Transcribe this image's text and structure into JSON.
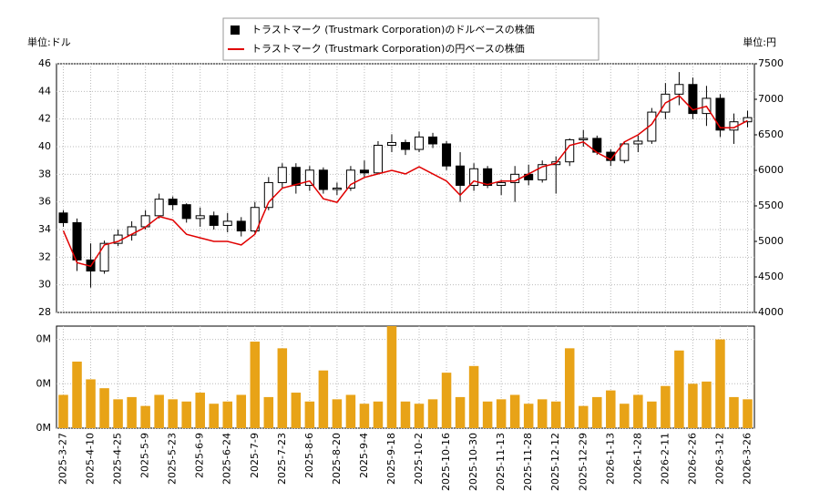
{
  "chart_data": [
    {
      "type": "candlestick",
      "y_unit_label": "単位:ドル",
      "y2_unit_label": "単位:円",
      "series": [
        {
          "name": "トラストマーク (Trustmark Corporation)のドルベースの株価",
          "color": "#000000",
          "open": [
            35.2,
            34.5,
            31.8,
            31.0,
            33.0,
            33.6,
            34.2,
            35.0,
            36.2,
            35.8,
            34.8,
            35.0,
            34.3,
            34.6,
            33.9,
            35.6,
            37.4,
            38.5,
            37.2,
            38.3,
            36.9,
            37.0,
            38.3,
            38.1,
            40.1,
            40.3,
            39.8,
            40.7,
            40.2,
            38.6,
            37.2,
            38.4,
            37.2,
            37.4,
            38.0,
            37.6,
            38.7,
            38.9,
            40.5,
            40.6,
            39.6,
            39.0,
            40.2,
            40.4,
            42.5,
            43.8,
            44.5,
            42.4,
            43.5,
            41.2,
            41.8
          ],
          "high": [
            35.4,
            34.8,
            33.0,
            33.2,
            34.0,
            34.6,
            35.4,
            36.6,
            36.4,
            35.9,
            35.6,
            35.3,
            35.2,
            34.9,
            36.0,
            37.8,
            38.8,
            38.8,
            38.6,
            38.5,
            37.4,
            38.6,
            39.0,
            40.4,
            40.9,
            40.5,
            41.1,
            41.0,
            40.4,
            39.6,
            38.8,
            38.6,
            37.6,
            38.6,
            38.7,
            39.0,
            39.3,
            40.6,
            41.2,
            40.8,
            39.8,
            40.4,
            40.8,
            42.8,
            44.6,
            45.4,
            45.0,
            44.4,
            43.8,
            42.4,
            42.6
          ],
          "low": [
            34.2,
            31.0,
            29.8,
            30.8,
            32.8,
            33.2,
            34.0,
            34.8,
            35.4,
            34.5,
            34.2,
            34.0,
            33.8,
            33.5,
            33.7,
            35.4,
            37.0,
            36.6,
            36.8,
            36.6,
            36.5,
            36.8,
            37.8,
            38.0,
            39.6,
            39.4,
            39.6,
            39.9,
            38.3,
            36.0,
            36.8,
            37.0,
            36.5,
            36.0,
            37.2,
            37.4,
            36.6,
            38.6,
            40.0,
            39.4,
            38.6,
            38.8,
            39.6,
            40.2,
            42.0,
            43.0,
            42.0,
            41.5,
            40.7,
            40.2,
            41.4
          ],
          "close": [
            34.5,
            31.8,
            31.0,
            33.0,
            33.6,
            34.2,
            35.0,
            36.2,
            35.8,
            34.8,
            35.0,
            34.3,
            34.6,
            33.9,
            35.6,
            37.4,
            38.5,
            37.2,
            38.3,
            36.9,
            37.0,
            38.3,
            38.1,
            40.1,
            40.3,
            39.8,
            40.7,
            40.2,
            38.6,
            37.2,
            38.4,
            37.2,
            37.4,
            38.0,
            37.6,
            38.7,
            38.9,
            40.5,
            40.6,
            39.6,
            39.0,
            40.2,
            40.4,
            42.5,
            43.8,
            44.5,
            42.4,
            43.5,
            41.2,
            41.8,
            42.1
          ]
        },
        {
          "name": "トラストマーク (Trustmark Corporation)の円ベースの株価",
          "color": "#e00000",
          "axis": "y2",
          "values": [
            5150,
            4700,
            4650,
            4950,
            5000,
            5100,
            5200,
            5350,
            5300,
            5100,
            5050,
            5000,
            5000,
            4950,
            5100,
            5550,
            5750,
            5800,
            5850,
            5600,
            5550,
            5800,
            5900,
            5950,
            6000,
            5950,
            6050,
            5950,
            5850,
            5650,
            5850,
            5800,
            5850,
            5850,
            5950,
            6050,
            6100,
            6350,
            6400,
            6250,
            6150,
            6400,
            6500,
            6650,
            6950,
            7050,
            6850,
            6900,
            6600,
            6600,
            6700
          ]
        }
      ],
      "ylim": [
        28,
        46
      ],
      "yticks": [
        28,
        30,
        32,
        34,
        36,
        38,
        40,
        42,
        44,
        46
      ],
      "y2lim": [
        4000,
        7500
      ],
      "y2ticks": [
        4000,
        4500,
        5000,
        5500,
        6000,
        6500,
        7000,
        7500
      ],
      "grid": true
    },
    {
      "type": "bar",
      "color": "#e8a317",
      "categories": [
        "2025-3-27",
        null,
        "2025-4-10",
        null,
        "2025-4-25",
        null,
        "2025-5-9",
        null,
        "2025-5-23",
        null,
        "2025-6-9",
        null,
        "2025-6-24",
        null,
        "2025-7-9",
        null,
        "2025-7-23",
        null,
        "2025-8-6",
        null,
        "2025-8-20",
        null,
        "2025-9-4",
        null,
        "2025-9-18",
        null,
        "2025-10-2",
        null,
        "2025-10-16",
        null,
        "2025-10-30",
        null,
        "2025-11-13",
        null,
        "2025-11-28",
        null,
        "2025-12-12",
        null,
        "2025-12-29",
        null,
        "2026-1-13",
        null,
        "2026-1-28",
        null,
        "2026-2-11",
        null,
        "2026-2-26",
        null,
        "2026-3-12",
        null,
        "2026-3-26"
      ],
      "values": [
        150000,
        300000,
        220000,
        180000,
        130000,
        140000,
        100000,
        150000,
        130000,
        120000,
        160000,
        110000,
        120000,
        150000,
        390000,
        140000,
        360000,
        160000,
        120000,
        260000,
        130000,
        150000,
        110000,
        120000,
        460000,
        120000,
        110000,
        130000,
        250000,
        140000,
        280000,
        120000,
        130000,
        150000,
        110000,
        130000,
        120000,
        360000,
        100000,
        140000,
        170000,
        110000,
        150000,
        120000,
        190000,
        350000,
        200000,
        210000,
        400000,
        140000,
        130000
      ],
      "ylim": [
        0,
        460000
      ],
      "yticks": [
        {
          "value": 0,
          "label": "0M"
        },
        {
          "value": 200000,
          "label": "0M"
        },
        {
          "value": 400000,
          "label": "0M"
        }
      ],
      "grid": true
    }
  ]
}
